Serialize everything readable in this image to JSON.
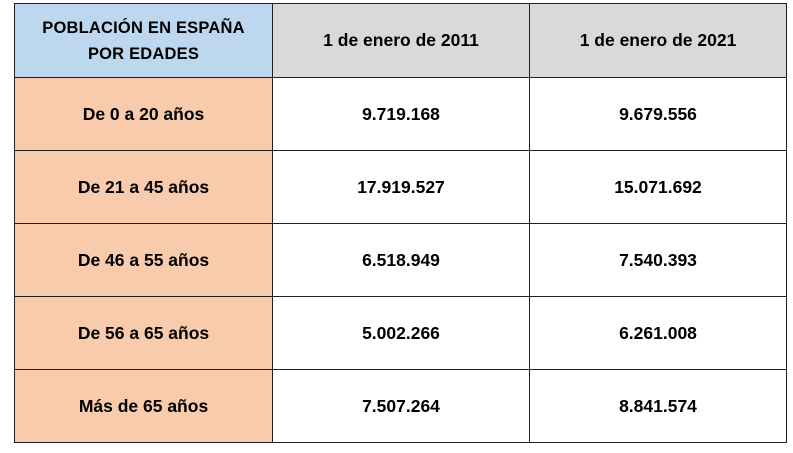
{
  "table": {
    "header": {
      "title_line1": "POBLACIÓN EN ESPAÑA",
      "title_line2": "POR EDADES",
      "col_2011": "1 de enero de 2011",
      "col_2021": "1 de enero de 2021"
    },
    "rows": [
      {
        "label": "De 0 a 20 años",
        "v2011": "9.719.168",
        "v2021": "9.679.556"
      },
      {
        "label": "De 21 a 45 años",
        "v2011": "17.919.527",
        "v2021": "15.071.692"
      },
      {
        "label": "De 46 a 55 años",
        "v2011": "6.518.949",
        "v2021": "7.540.393"
      },
      {
        "label": "De 56 a 65 años",
        "v2011": "5.002.266",
        "v2021": "6.261.008"
      },
      {
        "label": "Más de 65 años",
        "v2011": "7.507.264",
        "v2021": "8.841.574"
      }
    ]
  },
  "colors": {
    "header_title_bg": "#bdd7ee",
    "header_date_bg": "#d9d9d9",
    "row_label_bg": "#f8cbad",
    "cell_bg": "#ffffff",
    "border": "#1f1f1f"
  }
}
